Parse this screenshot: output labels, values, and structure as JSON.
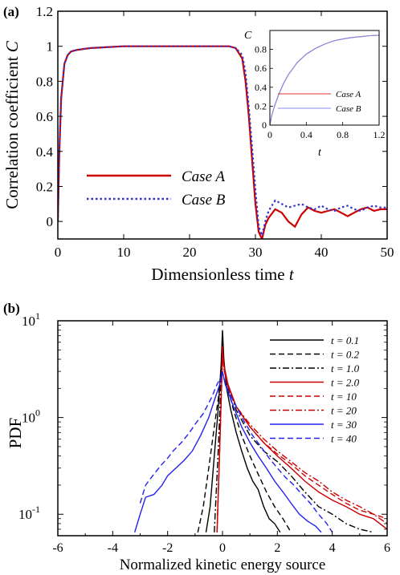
{
  "chart_data": [
    {
      "panel_label": "(a)",
      "type": "line",
      "xlabel_main": "Dimensionless time",
      "xlabel_var": "t",
      "ylabel_main": "Correlation coefficient",
      "ylabel_var": "C",
      "xlim": [
        0,
        50
      ],
      "ylim": [
        -0.1,
        1.2
      ],
      "xticks": [
        "0",
        "10",
        "20",
        "30",
        "40",
        "50"
      ],
      "yticks": [
        "0",
        "0.2",
        "0.4",
        "0.6",
        "0.8",
        "1",
        "1.2"
      ],
      "legend_position": "lower-left",
      "series": [
        {
          "name": "Case A",
          "color": "#cc0000",
          "style": "solid",
          "x": [
            0,
            0.2,
            0.5,
            1,
            1.5,
            2,
            3,
            5,
            10,
            20,
            26,
            27,
            28,
            28.5,
            29,
            29.5,
            30,
            30.5,
            31,
            31.5,
            32,
            33,
            34,
            35,
            36,
            37,
            38,
            39,
            40,
            41,
            42,
            43,
            44,
            45,
            46,
            47,
            48,
            49,
            50
          ],
          "y": [
            0,
            0.35,
            0.7,
            0.9,
            0.95,
            0.97,
            0.98,
            0.99,
            1.0,
            1.0,
            1.0,
            0.99,
            0.93,
            0.8,
            0.6,
            0.35,
            0.1,
            -0.06,
            -0.1,
            -0.02,
            0.02,
            0.07,
            0.05,
            0.0,
            -0.03,
            0.04,
            0.08,
            0.06,
            0.05,
            0.06,
            0.07,
            0.05,
            0.03,
            0.05,
            0.07,
            0.08,
            0.06,
            0.07,
            0.07
          ]
        },
        {
          "name": "Case B",
          "color": "#3333cc",
          "style": "dotted",
          "x": [
            0,
            0.2,
            0.5,
            1,
            1.5,
            2,
            3,
            5,
            10,
            20,
            26,
            27,
            28,
            28.5,
            29,
            29.5,
            30,
            30.5,
            31,
            31.5,
            32,
            33,
            34,
            35,
            36,
            37,
            38,
            39,
            40,
            41,
            42,
            43,
            44,
            45,
            46,
            47,
            48,
            49,
            50
          ],
          "y": [
            0,
            0.35,
            0.7,
            0.9,
            0.95,
            0.97,
            0.98,
            0.99,
            1.0,
            1.0,
            1.0,
            0.99,
            0.95,
            0.85,
            0.65,
            0.42,
            0.18,
            -0.03,
            -0.08,
            0.0,
            0.06,
            0.12,
            0.1,
            0.08,
            0.09,
            0.1,
            0.08,
            0.07,
            0.09,
            0.07,
            0.06,
            0.08,
            0.09,
            0.07,
            0.06,
            0.08,
            0.09,
            0.08,
            0.08
          ]
        }
      ],
      "inset": {
        "ylabel": "C",
        "xlabel": "t",
        "xlim": [
          0,
          1.2
        ],
        "ylim": [
          0,
          1.0
        ],
        "xticks": [
          "0",
          "0.4",
          "0.8",
          "1.2"
        ],
        "yticks": [
          "0",
          "0.2",
          "0.4",
          "0.6",
          "0.8"
        ],
        "series": [
          {
            "name": "Case A",
            "color": "#dd3333",
            "x": [
              0,
              0.02,
              0.05,
              0.1,
              0.15,
              0.2,
              0.3,
              0.4,
              0.5,
              0.6,
              0.7,
              0.8,
              0.9,
              1.0,
              1.1,
              1.2
            ],
            "y": [
              0.0,
              0.1,
              0.2,
              0.33,
              0.44,
              0.53,
              0.66,
              0.75,
              0.81,
              0.855,
              0.89,
              0.91,
              0.925,
              0.935,
              0.945,
              0.95
            ]
          },
          {
            "name": "Case B",
            "color": "#8888ee",
            "x": [
              0,
              0.02,
              0.05,
              0.1,
              0.15,
              0.2,
              0.3,
              0.4,
              0.5,
              0.6,
              0.7,
              0.8,
              0.9,
              1.0,
              1.1,
              1.2
            ],
            "y": [
              0.0,
              0.1,
              0.2,
              0.33,
              0.44,
              0.53,
              0.66,
              0.75,
              0.81,
              0.855,
              0.89,
              0.91,
              0.925,
              0.935,
              0.945,
              0.95
            ]
          }
        ]
      }
    },
    {
      "panel_label": "(b)",
      "type": "line",
      "xlabel": "Normalized kinetic energy source",
      "ylabel": "PDF",
      "xlim": [
        -6,
        6
      ],
      "yscale": "log",
      "ylim": [
        0.06,
        10
      ],
      "xticks": [
        "-6",
        "-4",
        "-2",
        "0",
        "2",
        "4",
        "6"
      ],
      "yticks": [
        {
          "base": "10",
          "exp": "1",
          "value": 10
        },
        {
          "base": "10",
          "exp": "0",
          "value": 1
        },
        {
          "base": "10",
          "exp": "-1",
          "value": 0.1
        }
      ],
      "legend_position": "top-right",
      "series": [
        {
          "name": "t = 0.1",
          "color": "#000000",
          "dash": "",
          "x": [
            -0.6,
            -0.45,
            -0.3,
            -0.15,
            -0.05,
            0,
            0.05,
            0.15,
            0.3,
            0.5,
            0.7,
            0.9,
            1.1,
            1.3,
            1.5,
            1.7,
            1.9,
            2.1
          ],
          "y": [
            0.065,
            0.12,
            0.4,
            1.3,
            3.5,
            8,
            4,
            2,
            1.2,
            0.7,
            0.45,
            0.3,
            0.22,
            0.18,
            0.12,
            0.09,
            0.08,
            0.065
          ]
        },
        {
          "name": "t = 0.2",
          "color": "#000000",
          "dash": "7,4",
          "x": [
            -0.9,
            -0.7,
            -0.5,
            -0.3,
            -0.15,
            -0.05,
            0,
            0.05,
            0.2,
            0.4,
            0.7,
            1.0,
            1.3,
            1.6,
            1.9,
            2.2,
            2.5
          ],
          "y": [
            0.065,
            0.12,
            0.3,
            0.8,
            1.6,
            3.2,
            6,
            3.5,
            2,
            1.2,
            0.65,
            0.4,
            0.26,
            0.17,
            0.12,
            0.09,
            0.065
          ]
        },
        {
          "name": "t = 1.0",
          "color": "#000000",
          "dash": "8,3,2,3",
          "x": [
            -0.3,
            -0.15,
            -0.05,
            0,
            0.05,
            0.2,
            0.5,
            1.0,
            1.5,
            2.0,
            2.5,
            3.0,
            3.5,
            4.0,
            4.5,
            5.0,
            5.5
          ],
          "y": [
            0.065,
            0.5,
            2.5,
            6,
            3.5,
            2.2,
            1.2,
            0.65,
            0.45,
            0.35,
            0.25,
            0.17,
            0.12,
            0.1,
            0.08,
            0.07,
            0.065
          ]
        },
        {
          "name": "t = 2.0",
          "color": "#cc0000",
          "dash": "",
          "x": [
            -0.2,
            -0.1,
            -0.03,
            0,
            0.05,
            0.2,
            0.5,
            1.0,
            1.5,
            2.0,
            2.5,
            3.0,
            3.5,
            4.0,
            4.5,
            5.0,
            5.5,
            6.0
          ],
          "y": [
            0.065,
            0.5,
            2.5,
            5.5,
            3.5,
            2.2,
            1.3,
            0.8,
            0.55,
            0.4,
            0.3,
            0.22,
            0.17,
            0.14,
            0.12,
            0.1,
            0.09,
            0.07
          ]
        },
        {
          "name": "t = 10",
          "color": "#cc0000",
          "dash": "7,4",
          "x": [
            -0.2,
            -0.1,
            -0.03,
            0,
            0.05,
            0.2,
            0.5,
            1.0,
            1.5,
            2.0,
            2.5,
            3.0,
            3.5,
            4.0,
            4.5,
            5.0,
            5.5,
            6.0
          ],
          "y": [
            0.065,
            0.5,
            2.2,
            5,
            3.2,
            2.1,
            1.3,
            0.8,
            0.55,
            0.42,
            0.33,
            0.25,
            0.2,
            0.16,
            0.13,
            0.11,
            0.1,
            0.09
          ]
        },
        {
          "name": "t = 20",
          "color": "#cc0000",
          "dash": "8,3,2,3",
          "x": [
            -0.2,
            -0.1,
            -0.03,
            0,
            0.05,
            0.2,
            0.5,
            1.0,
            1.5,
            2.0,
            2.5,
            3.0,
            3.5,
            4.0,
            4.5,
            5.0,
            5.5,
            6.0
          ],
          "y": [
            0.065,
            0.5,
            2.2,
            5,
            3.2,
            2.1,
            1.3,
            0.85,
            0.6,
            0.45,
            0.35,
            0.27,
            0.22,
            0.17,
            0.14,
            0.12,
            0.1,
            0.08
          ]
        },
        {
          "name": "t = 30",
          "color": "#2222ee",
          "dash": "",
          "x": [
            -3.2,
            -3.0,
            -2.8,
            -2.5,
            -2.2,
            -2.0,
            -1.7,
            -1.4,
            -1.1,
            -0.8,
            -0.5,
            -0.3,
            -0.1,
            0,
            0.1,
            0.4,
            0.7,
            1.0,
            1.3,
            1.6,
            1.9,
            2.2,
            2.5,
            2.8,
            3.1,
            3.4,
            3.6
          ],
          "y": [
            0.065,
            0.1,
            0.15,
            0.16,
            0.2,
            0.25,
            0.3,
            0.36,
            0.45,
            0.65,
            1.0,
            1.5,
            2.2,
            3,
            2.2,
            1.3,
            0.8,
            0.55,
            0.4,
            0.3,
            0.22,
            0.17,
            0.13,
            0.1,
            0.085,
            0.075,
            0.065
          ]
        },
        {
          "name": "t = 40",
          "color": "#2222ee",
          "dash": "7,4",
          "x": [
            -3.0,
            -2.8,
            -2.5,
            -2.2,
            -2.0,
            -1.8,
            -1.5,
            -1.2,
            -1.0,
            -0.7,
            -0.4,
            -0.2,
            0,
            0.2,
            0.5,
            0.8,
            1.1,
            1.4,
            1.7,
            2.0,
            2.3,
            2.6,
            2.9,
            3.2,
            3.5,
            3.8,
            4.0
          ],
          "y": [
            0.13,
            0.2,
            0.26,
            0.33,
            0.38,
            0.45,
            0.55,
            0.7,
            0.85,
            1.1,
            1.6,
            2.2,
            2.8,
            1.9,
            1.3,
            0.9,
            0.65,
            0.5,
            0.38,
            0.3,
            0.24,
            0.2,
            0.16,
            0.13,
            0.1,
            0.08,
            0.065
          ]
        }
      ]
    }
  ]
}
